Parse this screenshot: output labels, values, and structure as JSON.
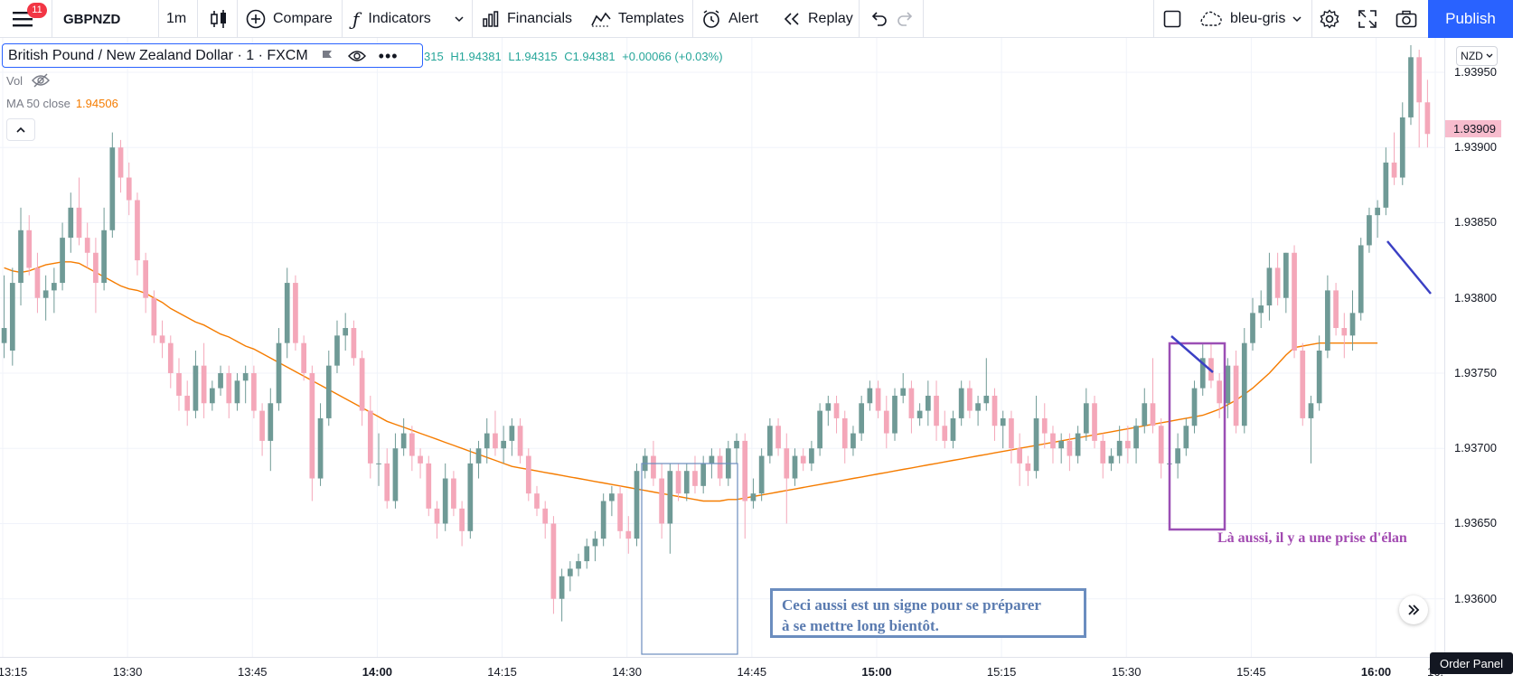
{
  "toolbar": {
    "notification_count": "11",
    "symbol": "GBPNZD",
    "interval": "1m",
    "compare_label": "Compare",
    "indicators_label": "Indicators",
    "financials_label": "Financials",
    "templates_label": "Templates",
    "alert_label": "Alert",
    "replay_label": "Replay",
    "layout_name": "bleu-gris",
    "publish_label": "Publish"
  },
  "legend": {
    "title": "British Pound / New Zealand Dollar · 1 · FXCM",
    "open_fragment": "315",
    "high": "H1.94381",
    "low": "L1.94315",
    "close": "C1.94381",
    "change": "+0.00066 (+0.03%)",
    "vol_label": "Vol",
    "ma_label": "MA 50 close",
    "ma_value": "1.94506"
  },
  "price_axis": {
    "currency_button": "NZD",
    "current_price": "1.93909",
    "labels": [
      "1.93950",
      "1.93900",
      "1.93850",
      "1.93800",
      "1.93750",
      "1.93700",
      "1.93650",
      "1.93600"
    ]
  },
  "time_axis": {
    "labels": [
      {
        "text": "13:15",
        "bold": false
      },
      {
        "text": "13:30",
        "bold": false
      },
      {
        "text": "13:45",
        "bold": false
      },
      {
        "text": "14:00",
        "bold": true
      },
      {
        "text": "14:15",
        "bold": false
      },
      {
        "text": "14:30",
        "bold": false
      },
      {
        "text": "14:45",
        "bold": false
      },
      {
        "text": "15:00",
        "bold": true
      },
      {
        "text": "15:15",
        "bold": false
      },
      {
        "text": "15:30",
        "bold": false
      },
      {
        "text": "15:45",
        "bold": false
      },
      {
        "text": "16:00",
        "bold": true
      },
      {
        "text": "16:",
        "bold": false
      }
    ]
  },
  "annotations": {
    "note1_line1": "Ceci aussi est un signe pour se préparer",
    "note1_line2": "à se mettre long bientôt.",
    "note2": "Là aussi, il y a une prise d'élan"
  },
  "order_panel_label": "Order Panel",
  "colors": {
    "up": "#6f9a96",
    "down": "#f4a7b9",
    "ma": "#f57c00",
    "accent": "#2962ff"
  },
  "chart_data": {
    "type": "candlestick",
    "symbol": "GBPNZD",
    "interval": "1m",
    "x_start": "13:15",
    "x_end": "16:05",
    "ylim": [
      1.93565,
      1.93968
    ],
    "ma_period": 50,
    "candles": [
      [
        1.9377,
        1.93815,
        1.9376,
        1.9378
      ],
      [
        1.93765,
        1.9382,
        1.93755,
        1.9381
      ],
      [
        1.9381,
        1.9386,
        1.93795,
        1.93845
      ],
      [
        1.93845,
        1.93855,
        1.93815,
        1.9382
      ],
      [
        1.9382,
        1.9383,
        1.9379,
        1.938
      ],
      [
        1.938,
        1.93815,
        1.93785,
        1.93805
      ],
      [
        1.93805,
        1.9382,
        1.9379,
        1.9381
      ],
      [
        1.9381,
        1.9385,
        1.93805,
        1.9384
      ],
      [
        1.9384,
        1.9387,
        1.9383,
        1.9386
      ],
      [
        1.9386,
        1.9388,
        1.93835,
        1.9384
      ],
      [
        1.9384,
        1.9385,
        1.9382,
        1.9383
      ],
      [
        1.9383,
        1.9384,
        1.9379,
        1.9381
      ],
      [
        1.9381,
        1.9386,
        1.93805,
        1.93845
      ],
      [
        1.93845,
        1.9391,
        1.9384,
        1.939
      ],
      [
        1.939,
        1.93905,
        1.9387,
        1.9388
      ],
      [
        1.9388,
        1.9389,
        1.93855,
        1.93865
      ],
      [
        1.93865,
        1.9387,
        1.93815,
        1.93825
      ],
      [
        1.93825,
        1.9383,
        1.9379,
        1.938
      ],
      [
        1.938,
        1.93805,
        1.9377,
        1.93775
      ],
      [
        1.93775,
        1.93785,
        1.9376,
        1.9377
      ],
      [
        1.9377,
        1.93775,
        1.9374,
        1.9375
      ],
      [
        1.9375,
        1.9376,
        1.93725,
        1.93735
      ],
      [
        1.93735,
        1.93745,
        1.93715,
        1.93725
      ],
      [
        1.93725,
        1.93765,
        1.9372,
        1.93755
      ],
      [
        1.93755,
        1.9377,
        1.9372,
        1.9373
      ],
      [
        1.9373,
        1.93745,
        1.93725,
        1.9374
      ],
      [
        1.9374,
        1.93755,
        1.93735,
        1.9375
      ],
      [
        1.9375,
        1.93755,
        1.9372,
        1.9373
      ],
      [
        1.9373,
        1.9375,
        1.93725,
        1.93745
      ],
      [
        1.93745,
        1.93755,
        1.9373,
        1.9375
      ],
      [
        1.9375,
        1.93755,
        1.9372,
        1.93725
      ],
      [
        1.93725,
        1.9373,
        1.93695,
        1.93705
      ],
      [
        1.93705,
        1.9374,
        1.93685,
        1.9373
      ],
      [
        1.9373,
        1.9378,
        1.93725,
        1.9377
      ],
      [
        1.9377,
        1.9382,
        1.9376,
        1.9381
      ],
      [
        1.9381,
        1.93815,
        1.93765,
        1.9377
      ],
      [
        1.9377,
        1.93775,
        1.93745,
        1.9375
      ],
      [
        1.9375,
        1.93755,
        1.93665,
        1.9368
      ],
      [
        1.9368,
        1.9373,
        1.93675,
        1.9372
      ],
      [
        1.9372,
        1.93765,
        1.93715,
        1.93755
      ],
      [
        1.93755,
        1.93785,
        1.9375,
        1.93775
      ],
      [
        1.93775,
        1.9379,
        1.93765,
        1.9378
      ],
      [
        1.9378,
        1.93785,
        1.93755,
        1.9376
      ],
      [
        1.9376,
        1.93765,
        1.93715,
        1.93725
      ],
      [
        1.93725,
        1.93735,
        1.9368,
        1.9369
      ],
      [
        1.9369,
        1.9371,
        1.93675,
        1.9369
      ],
      [
        1.9369,
        1.937,
        1.9366,
        1.93665
      ],
      [
        1.93665,
        1.9371,
        1.9366,
        1.937
      ],
      [
        1.937,
        1.9372,
        1.93695,
        1.9371
      ],
      [
        1.9371,
        1.93715,
        1.93685,
        1.93695
      ],
      [
        1.93695,
        1.937,
        1.9368,
        1.9369
      ],
      [
        1.9369,
        1.93695,
        1.93655,
        1.9366
      ],
      [
        1.9366,
        1.93665,
        1.9364,
        1.9365
      ],
      [
        1.9365,
        1.9369,
        1.93645,
        1.9368
      ],
      [
        1.9368,
        1.93685,
        1.93655,
        1.9366
      ],
      [
        1.9366,
        1.93665,
        1.93635,
        1.93645
      ],
      [
        1.93645,
        1.937,
        1.9364,
        1.9369
      ],
      [
        1.9369,
        1.93705,
        1.9368,
        1.937
      ],
      [
        1.937,
        1.9372,
        1.9369,
        1.9371
      ],
      [
        1.9371,
        1.93725,
        1.93695,
        1.937
      ],
      [
        1.937,
        1.93715,
        1.9369,
        1.93705
      ],
      [
        1.93705,
        1.9372,
        1.93695,
        1.93715
      ],
      [
        1.93715,
        1.9372,
        1.9369,
        1.93695
      ],
      [
        1.93695,
        1.937,
        1.93665,
        1.9367
      ],
      [
        1.9367,
        1.93675,
        1.93655,
        1.9366
      ],
      [
        1.9366,
        1.93665,
        1.9364,
        1.9365
      ],
      [
        1.9365,
        1.93655,
        1.9359,
        1.936
      ],
      [
        1.936,
        1.9362,
        1.93585,
        1.93615
      ],
      [
        1.93615,
        1.93625,
        1.93605,
        1.9362
      ],
      [
        1.9362,
        1.9363,
        1.93615,
        1.93625
      ],
      [
        1.93625,
        1.9364,
        1.9362,
        1.93635
      ],
      [
        1.93635,
        1.93645,
        1.93625,
        1.9364
      ],
      [
        1.9364,
        1.9367,
        1.93635,
        1.93665
      ],
      [
        1.93665,
        1.93675,
        1.93655,
        1.9367
      ],
      [
        1.9367,
        1.93675,
        1.9364,
        1.93645
      ],
      [
        1.93645,
        1.93655,
        1.9363,
        1.9364
      ],
      [
        1.9364,
        1.9369,
        1.93635,
        1.93685
      ],
      [
        1.93685,
        1.937,
        1.9368,
        1.93695
      ],
      [
        1.93695,
        1.93705,
        1.93675,
        1.9368
      ],
      [
        1.9368,
        1.9369,
        1.9364,
        1.9365
      ],
      [
        1.9365,
        1.9369,
        1.9363,
        1.93685
      ],
      [
        1.93685,
        1.9369,
        1.93665,
        1.9367
      ],
      [
        1.9367,
        1.9369,
        1.93665,
        1.93685
      ],
      [
        1.93685,
        1.93695,
        1.9367,
        1.93675
      ],
      [
        1.93675,
        1.93695,
        1.9367,
        1.9369
      ],
      [
        1.9369,
        1.937,
        1.9368,
        1.93695
      ],
      [
        1.93695,
        1.937,
        1.93675,
        1.9368
      ],
      [
        1.9368,
        1.93705,
        1.93675,
        1.937
      ],
      [
        1.937,
        1.9371,
        1.9369,
        1.93705
      ],
      [
        1.93705,
        1.9371,
        1.9364,
        1.93665
      ],
      [
        1.93665,
        1.9368,
        1.9366,
        1.9367
      ],
      [
        1.9367,
        1.937,
        1.93665,
        1.93695
      ],
      [
        1.93695,
        1.9372,
        1.9369,
        1.93715
      ],
      [
        1.93715,
        1.9372,
        1.93695,
        1.937
      ],
      [
        1.937,
        1.9371,
        1.9365,
        1.9368
      ],
      [
        1.9368,
        1.937,
        1.93675,
        1.93695
      ],
      [
        1.93695,
        1.937,
        1.93685,
        1.9369
      ],
      [
        1.9369,
        1.93705,
        1.93685,
        1.937
      ],
      [
        1.937,
        1.9373,
        1.93695,
        1.93725
      ],
      [
        1.93725,
        1.93735,
        1.93715,
        1.9373
      ],
      [
        1.9373,
        1.93735,
        1.9371,
        1.9372
      ],
      [
        1.9372,
        1.93725,
        1.9369,
        1.937
      ],
      [
        1.937,
        1.93715,
        1.93695,
        1.9371
      ],
      [
        1.9371,
        1.93735,
        1.93705,
        1.9373
      ],
      [
        1.9373,
        1.93745,
        1.93725,
        1.9374
      ],
      [
        1.9374,
        1.93745,
        1.9372,
        1.93725
      ],
      [
        1.93725,
        1.93735,
        1.937,
        1.9371
      ],
      [
        1.9371,
        1.9374,
        1.93705,
        1.93735
      ],
      [
        1.93735,
        1.9375,
        1.9373,
        1.9374
      ],
      [
        1.9374,
        1.93745,
        1.9371,
        1.9372
      ],
      [
        1.9372,
        1.9373,
        1.93715,
        1.93725
      ],
      [
        1.93725,
        1.93745,
        1.93715,
        1.93735
      ],
      [
        1.93735,
        1.93745,
        1.93705,
        1.93715
      ],
      [
        1.93715,
        1.93725,
        1.937,
        1.93705
      ],
      [
        1.93705,
        1.93725,
        1.937,
        1.9372
      ],
      [
        1.9372,
        1.93745,
        1.93715,
        1.9374
      ],
      [
        1.9374,
        1.93745,
        1.9372,
        1.93725
      ],
      [
        1.93725,
        1.93735,
        1.93715,
        1.9373
      ],
      [
        1.9373,
        1.9376,
        1.93725,
        1.93735
      ],
      [
        1.93735,
        1.9374,
        1.93705,
        1.93715
      ],
      [
        1.93715,
        1.93725,
        1.937,
        1.9372
      ],
      [
        1.9372,
        1.93725,
        1.9369,
        1.937
      ],
      [
        1.937,
        1.9371,
        1.93675,
        1.9369
      ],
      [
        1.9369,
        1.93695,
        1.93675,
        1.93685
      ],
      [
        1.93685,
        1.93735,
        1.9368,
        1.9372
      ],
      [
        1.9372,
        1.9373,
        1.937,
        1.9371
      ],
      [
        1.9371,
        1.93715,
        1.9369,
        1.937
      ],
      [
        1.937,
        1.9371,
        1.9369,
        1.93705
      ],
      [
        1.93705,
        1.9371,
        1.93685,
        1.93695
      ],
      [
        1.93695,
        1.93715,
        1.9369,
        1.9371
      ],
      [
        1.9371,
        1.9374,
        1.93705,
        1.9373
      ],
      [
        1.9373,
        1.93735,
        1.937,
        1.93705
      ],
      [
        1.93705,
        1.9371,
        1.9368,
        1.9369
      ],
      [
        1.9369,
        1.937,
        1.93685,
        1.93695
      ],
      [
        1.93695,
        1.93715,
        1.9369,
        1.93705
      ],
      [
        1.93705,
        1.93715,
        1.9369,
        1.937
      ],
      [
        1.937,
        1.9372,
        1.9369,
        1.93715
      ],
      [
        1.93715,
        1.9374,
        1.9371,
        1.9373
      ],
      [
        1.9373,
        1.9376,
        1.9371,
        1.93715
      ],
      [
        1.93715,
        1.9372,
        1.9368,
        1.9369
      ],
      [
        1.9369,
        1.93705,
        1.9366,
        1.9369
      ],
      [
        1.9369,
        1.9371,
        1.9368,
        1.937
      ],
      [
        1.937,
        1.9372,
        1.93695,
        1.93715
      ],
      [
        1.93715,
        1.93745,
        1.9371,
        1.9374
      ],
      [
        1.9374,
        1.9377,
        1.93735,
        1.9376
      ],
      [
        1.9376,
        1.9377,
        1.9374,
        1.93745
      ],
      [
        1.93745,
        1.9375,
        1.9372,
        1.9373
      ],
      [
        1.9373,
        1.9376,
        1.9372,
        1.93755
      ],
      [
        1.93755,
        1.93765,
        1.9371,
        1.93715
      ],
      [
        1.93715,
        1.9378,
        1.9371,
        1.9377
      ],
      [
        1.9377,
        1.938,
        1.93765,
        1.9379
      ],
      [
        1.9379,
        1.93805,
        1.9378,
        1.93795
      ],
      [
        1.93795,
        1.9383,
        1.93785,
        1.9382
      ],
      [
        1.9382,
        1.9383,
        1.93795,
        1.938
      ],
      [
        1.938,
        1.9383,
        1.9379,
        1.9383
      ],
      [
        1.9383,
        1.93835,
        1.9376,
        1.93765
      ],
      [
        1.93765,
        1.9377,
        1.93715,
        1.9372
      ],
      [
        1.9372,
        1.93735,
        1.9369,
        1.9373
      ],
      [
        1.9373,
        1.93775,
        1.93725,
        1.93765
      ],
      [
        1.93765,
        1.93815,
        1.9376,
        1.93805
      ],
      [
        1.93805,
        1.9381,
        1.93775,
        1.9378
      ],
      [
        1.9378,
        1.9379,
        1.9376,
        1.93775
      ],
      [
        1.93775,
        1.93805,
        1.93765,
        1.9379
      ],
      [
        1.9379,
        1.9384,
        1.93785,
        1.93835
      ],
      [
        1.93835,
        1.9386,
        1.9383,
        1.93855
      ],
      [
        1.93855,
        1.93865,
        1.9384,
        1.9386
      ],
      [
        1.9386,
        1.939,
        1.93855,
        1.9389
      ],
      [
        1.9389,
        1.9391,
        1.93875,
        1.9388
      ],
      [
        1.9388,
        1.9393,
        1.93875,
        1.9392
      ],
      [
        1.9392,
        1.93968,
        1.93915,
        1.9396
      ],
      [
        1.9396,
        1.93965,
        1.939,
        1.9393
      ],
      [
        1.9393,
        1.93945,
        1.939,
        1.93909
      ]
    ],
    "ma": [
      1.9382,
      1.93818,
      1.93817,
      1.93818,
      1.9382,
      1.93822,
      1.93823,
      1.93824,
      1.93824,
      1.93823,
      1.9382,
      1.93817,
      1.93814,
      1.93811,
      1.93808,
      1.93806,
      1.93805,
      1.93803,
      1.938,
      1.93797,
      1.93793,
      1.9379,
      1.93787,
      1.93784,
      1.93782,
      1.93779,
      1.93776,
      1.93774,
      1.93771,
      1.93768,
      1.93766,
      1.93763,
      1.9376,
      1.93757,
      1.93754,
      1.93751,
      1.93748,
      1.93745,
      1.93742,
      1.93739,
      1.93736,
      1.93733,
      1.9373,
      1.93727,
      1.93724,
      1.93721,
      1.93718,
      1.93716,
      1.93714,
      1.93712,
      1.9371,
      1.93708,
      1.93706,
      1.93704,
      1.93702,
      1.937,
      1.93698,
      1.93696,
      1.93694,
      1.93692,
      1.9369,
      1.93688,
      1.93687,
      1.93686,
      1.93685,
      1.93684,
      1.93683,
      1.93682,
      1.93681,
      1.9368,
      1.93679,
      1.93678,
      1.93677,
      1.93676,
      1.93675,
      1.93674,
      1.93673,
      1.93672,
      1.93671,
      1.9367,
      1.93669,
      1.93668,
      1.93667,
      1.93666,
      1.93665,
      1.93665,
      1.93665,
      1.93666,
      1.93666,
      1.93667,
      1.93668,
      1.93669,
      1.9367,
      1.93671,
      1.93672,
      1.93673,
      1.93674,
      1.93675,
      1.93676,
      1.93677,
      1.93678,
      1.93679,
      1.9368,
      1.93681,
      1.93682,
      1.93683,
      1.93684,
      1.93685,
      1.93686,
      1.93687,
      1.93688,
      1.93689,
      1.9369,
      1.93691,
      1.93692,
      1.93693,
      1.93694,
      1.93695,
      1.93696,
      1.93697,
      1.93698,
      1.93699,
      1.937,
      1.93701,
      1.93702,
      1.93703,
      1.93704,
      1.93705,
      1.93706,
      1.93707,
      1.93708,
      1.93709,
      1.9371,
      1.93711,
      1.93712,
      1.93713,
      1.93714,
      1.93715,
      1.93716,
      1.93717,
      1.93718,
      1.93719,
      1.9372,
      1.93721,
      1.93722,
      1.93724,
      1.93726,
      1.93729,
      1.93732,
      1.93736,
      1.9374,
      1.93745,
      1.9375,
      1.93756,
      1.93762,
      1.93767,
      1.93768,
      1.93769,
      1.9377,
      1.9377,
      1.9377,
      1.9377,
      1.9377,
      1.9377,
      1.9377,
      1.9377
    ]
  }
}
